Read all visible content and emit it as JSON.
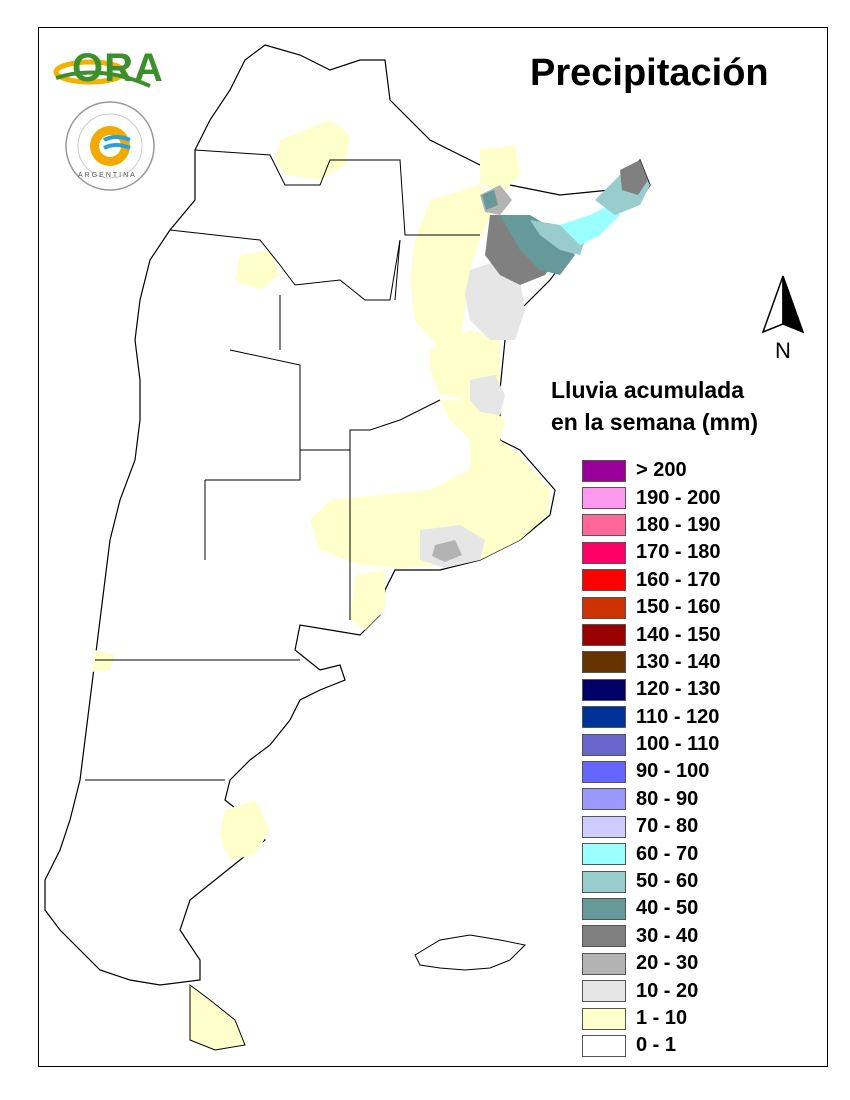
{
  "title": "Precipitación",
  "legend": {
    "title_line1": "Lluvia acumulada",
    "title_line2": "en la semana (mm)",
    "items": [
      {
        "label": "> 200",
        "color": "#990099"
      },
      {
        "label": "190 - 200",
        "color": "#ff99ee"
      },
      {
        "label": "180 - 190",
        "color": "#ff6699"
      },
      {
        "label": "170 - 180",
        "color": "#ff0066"
      },
      {
        "label": "160 - 170",
        "color": "#ff0000"
      },
      {
        "label": "150 - 160",
        "color": "#cc3300"
      },
      {
        "label": "140 - 150",
        "color": "#990000"
      },
      {
        "label": "130 - 140",
        "color": "#663300"
      },
      {
        "label": "120 - 130",
        "color": "#000066"
      },
      {
        "label": "110 - 120",
        "color": "#003399"
      },
      {
        "label": "100 - 110",
        "color": "#6666cc"
      },
      {
        "label": "90 - 100",
        "color": "#6666ff"
      },
      {
        "label": "80 - 90",
        "color": "#9999ff"
      },
      {
        "label": "70 - 80",
        "color": "#ccccff"
      },
      {
        "label": "60 - 70",
        "color": "#99ffff"
      },
      {
        "label": "50 - 60",
        "color": "#99cccc"
      },
      {
        "label": "40 - 50",
        "color": "#669999"
      },
      {
        "label": "30 - 40",
        "color": "#808080"
      },
      {
        "label": "20 - 30",
        "color": "#b3b3b3"
      },
      {
        "label": "10 - 20",
        "color": "#e6e6e6"
      },
      {
        "label": "1 - 10",
        "color": "#ffffcc"
      },
      {
        "label": "0 - 1",
        "color": "#ffffff"
      }
    ]
  },
  "north_arrow": {
    "label": "N"
  },
  "logos": {
    "ora_text": "ORA",
    "smn_bottom_text": "ARGENTINA"
  }
}
